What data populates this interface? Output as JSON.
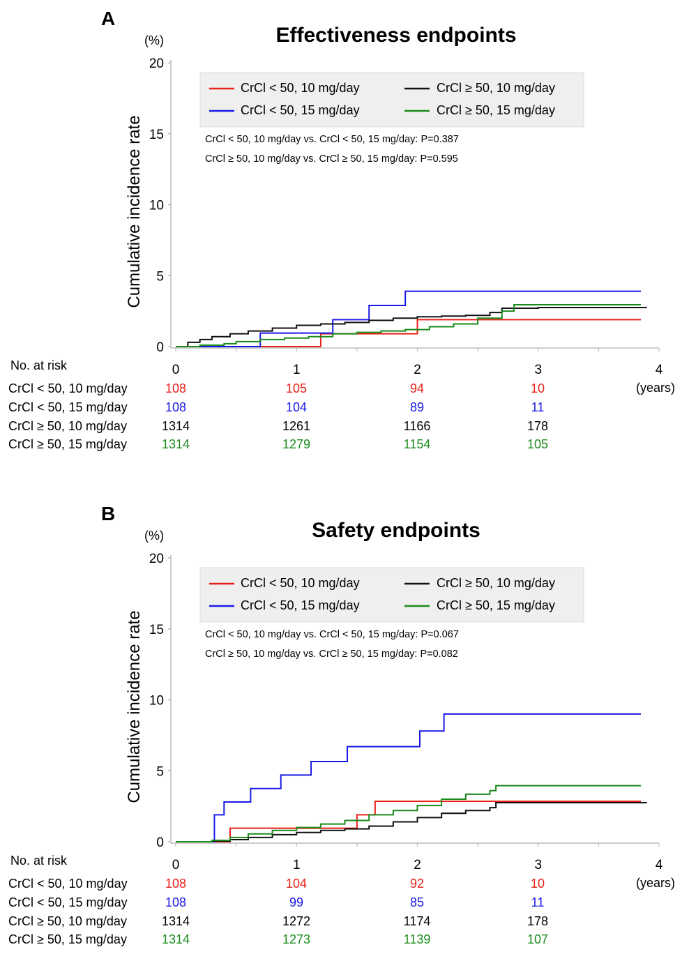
{
  "chart_data": [
    {
      "type": "line",
      "panel_label": "A",
      "title": "Effectiveness endpoints",
      "unit_label": "(%)",
      "ylabel": "Cumulative incidence rate",
      "x_unit": "(years)",
      "xlim": [
        0,
        4
      ],
      "ylim": [
        0,
        20
      ],
      "xticks": [
        "0",
        "1",
        "2",
        "3",
        "4"
      ],
      "yticks": [
        "0",
        "5",
        "10",
        "15",
        "20"
      ],
      "legend": {
        "placement": "top"
      },
      "pvalues": [
        "CrCl < 50, 10 mg/day vs. CrCl < 50, 15 mg/day: P=0.387",
        "CrCl ≥ 50, 10 mg/day vs. CrCl ≥ 50, 15 mg/day: P=0.595"
      ],
      "risk_table": {
        "header": "No. at risk",
        "times": [
          0,
          1,
          2,
          3
        ]
      },
      "series": [
        {
          "name": "CrCl < 50, 10 mg/day",
          "color": "#e8201a",
          "x": [
            0,
            1.2,
            1.2,
            2.0,
            2.0,
            2.6,
            2.6,
            3.85
          ],
          "y": [
            0,
            0,
            0.9,
            0.9,
            1.9,
            1.9,
            1.9,
            1.9
          ],
          "at_risk": [
            "108",
            "105",
            "94",
            "10"
          ]
        },
        {
          "name": "CrCl < 50, 15 mg/day",
          "color": "#1a1ae8",
          "x": [
            0,
            0.7,
            0.7,
            1.3,
            1.3,
            1.6,
            1.6,
            1.9,
            1.9,
            3.85
          ],
          "y": [
            0,
            0,
            0.95,
            0.95,
            1.9,
            1.9,
            2.9,
            2.9,
            3.9,
            3.9
          ],
          "at_risk": [
            "108",
            "104",
            "89",
            "11"
          ]
        },
        {
          "name": "CrCl ≥ 50, 10 mg/day",
          "color": "#111111",
          "x": [
            0,
            0.1,
            0.2,
            0.3,
            0.45,
            0.6,
            0.8,
            1.0,
            1.2,
            1.4,
            1.6,
            1.8,
            2.0,
            2.2,
            2.4,
            2.6,
            2.7,
            3.0,
            3.9
          ],
          "y": [
            0,
            0.3,
            0.5,
            0.7,
            0.9,
            1.1,
            1.3,
            1.5,
            1.6,
            1.7,
            1.85,
            2.0,
            2.1,
            2.15,
            2.2,
            2.4,
            2.7,
            2.75,
            2.75
          ],
          "at_risk": [
            "1314",
            "1261",
            "1166",
            "178"
          ]
        },
        {
          "name": "CrCl ≥ 50, 15 mg/day",
          "color": "#1a8a1a",
          "x": [
            0,
            0.2,
            0.4,
            0.5,
            0.7,
            0.9,
            1.1,
            1.3,
            1.5,
            1.7,
            1.9,
            2.1,
            2.3,
            2.5,
            2.7,
            2.8,
            3.85
          ],
          "y": [
            0,
            0.1,
            0.2,
            0.35,
            0.5,
            0.6,
            0.7,
            0.9,
            1.0,
            1.1,
            1.2,
            1.4,
            1.6,
            2.0,
            2.5,
            2.95,
            2.95
          ],
          "at_risk": [
            "1314",
            "1279",
            "1154",
            "105"
          ]
        }
      ]
    },
    {
      "type": "line",
      "panel_label": "B",
      "title": "Safety endpoints",
      "unit_label": "(%)",
      "ylabel": "Cumulative incidence rate",
      "x_unit": "(years)",
      "xlim": [
        0,
        4
      ],
      "ylim": [
        0,
        20
      ],
      "xticks": [
        "0",
        "1",
        "2",
        "3",
        "4"
      ],
      "yticks": [
        "0",
        "5",
        "10",
        "15",
        "20"
      ],
      "legend": {
        "placement": "top"
      },
      "pvalues": [
        "CrCl < 50, 10 mg/day vs. CrCl < 50, 15 mg/day: P=0.067",
        "CrCl ≥ 50, 10 mg/day vs. CrCl ≥ 50, 15 mg/day: P=0.082"
      ],
      "risk_table": {
        "header": "No. at risk",
        "times": [
          0,
          1,
          2,
          3
        ]
      },
      "series": [
        {
          "name": "CrCl < 50, 10 mg/day",
          "color": "#e8201a",
          "x": [
            0,
            0.45,
            0.45,
            1.5,
            1.5,
            1.65,
            1.65,
            3.85
          ],
          "y": [
            0,
            0,
            0.95,
            0.95,
            1.9,
            1.9,
            2.85,
            2.85
          ],
          "at_risk": [
            "108",
            "104",
            "92",
            "10"
          ]
        },
        {
          "name": "CrCl < 50, 15 mg/day",
          "color": "#1a1ae8",
          "x": [
            0,
            0.32,
            0.32,
            0.4,
            0.4,
            0.62,
            0.62,
            0.87,
            0.87,
            1.12,
            1.12,
            1.42,
            1.42,
            2.02,
            2.02,
            2.22,
            2.22,
            3.85
          ],
          "y": [
            0,
            0,
            1.9,
            1.9,
            2.8,
            2.8,
            3.75,
            3.75,
            4.7,
            4.7,
            5.65,
            5.65,
            6.7,
            6.7,
            7.8,
            7.8,
            9.0,
            9.0
          ],
          "at_risk": [
            "108",
            "99",
            "85",
            "11"
          ]
        },
        {
          "name": "CrCl ≥ 50, 10 mg/day",
          "color": "#111111",
          "x": [
            0,
            0.3,
            0.45,
            0.6,
            0.8,
            1.0,
            1.2,
            1.4,
            1.6,
            1.8,
            2.0,
            2.2,
            2.4,
            2.6,
            2.65,
            3.0,
            3.9
          ],
          "y": [
            0,
            0.05,
            0.15,
            0.3,
            0.5,
            0.65,
            0.8,
            0.9,
            1.1,
            1.4,
            1.7,
            2.0,
            2.2,
            2.4,
            2.75,
            2.75,
            2.75
          ],
          "at_risk": [
            "1314",
            "1272",
            "1174",
            "178"
          ]
        },
        {
          "name": "CrCl ≥ 50, 15 mg/day",
          "color": "#1a8a1a",
          "x": [
            0,
            0.3,
            0.45,
            0.6,
            0.8,
            1.0,
            1.2,
            1.4,
            1.6,
            1.8,
            2.0,
            2.2,
            2.4,
            2.6,
            2.65,
            3.85
          ],
          "y": [
            0,
            0.1,
            0.3,
            0.55,
            0.8,
            1.0,
            1.25,
            1.5,
            1.9,
            2.2,
            2.55,
            3.0,
            3.35,
            3.6,
            3.95,
            3.95
          ],
          "at_risk": [
            "1314",
            "1273",
            "1139",
            "107"
          ]
        }
      ]
    }
  ]
}
